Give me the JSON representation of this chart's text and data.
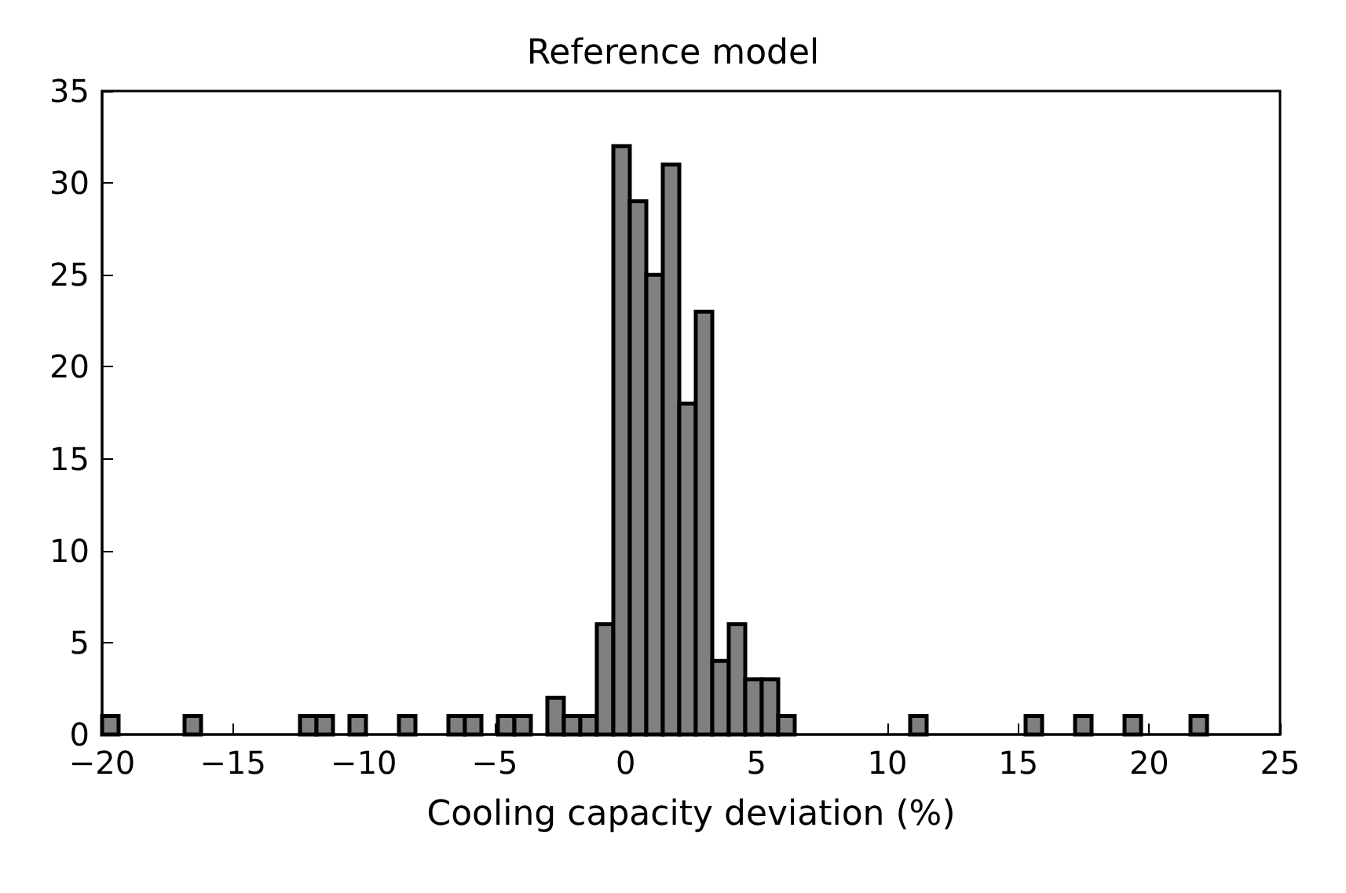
{
  "chart_data": {
    "type": "histogram",
    "title": "Reference model",
    "xlabel": "Cooling capacity deviation (%)",
    "color": "#808080",
    "bins": [
      -20,
      -19.37,
      -18.74,
      -18.11,
      -17.48,
      -16.85,
      -16.22,
      -15.59,
      -14.96,
      -14.33,
      -13.7,
      -13.07,
      -12.44,
      -11.81,
      -11.18,
      -10.55,
      -9.92,
      -9.29,
      -8.66,
      -8.03,
      -7.4,
      -6.77,
      -6.14,
      -5.51,
      -4.88,
      -4.25,
      -3.62,
      -2.99,
      -2.36,
      -1.73,
      -1.1,
      -0.47,
      0.16,
      0.79,
      1.42,
      2.05,
      2.68,
      3.31,
      3.94,
      4.57,
      5.2,
      5.83,
      6.46,
      7.09,
      7.72,
      8.35,
      8.98,
      9.61,
      10.24,
      10.87,
      11.5,
      12.13,
      12.76,
      13.39,
      14.02,
      14.65,
      15.28,
      15.91,
      16.54,
      17.17,
      17.8,
      18.43,
      19.06,
      19.69,
      20.32,
      20.95,
      21.58,
      22.21
    ],
    "values": [
      1,
      0,
      0,
      0,
      0,
      1,
      0,
      0,
      0,
      0,
      0,
      0,
      1,
      1,
      0,
      1,
      0,
      0,
      1,
      0,
      0,
      1,
      1,
      0,
      1,
      1,
      0,
      2,
      1,
      1,
      6,
      32,
      29,
      25,
      31,
      18,
      23,
      4,
      6,
      3,
      3,
      1,
      0,
      0,
      0,
      0,
      0,
      0,
      0,
      1,
      0,
      0,
      0,
      0,
      0,
      0,
      1,
      0,
      0,
      1,
      0,
      0,
      1,
      0,
      0,
      0,
      1
    ],
    "xlim": [
      -20,
      25
    ],
    "xticks": [
      -20,
      -15,
      -10,
      -5,
      0,
      5,
      10,
      15,
      20,
      25
    ],
    "ylim": [
      0,
      35
    ],
    "yticks": [
      0,
      5,
      10,
      15,
      20,
      25,
      30,
      35
    ],
    "grid": false
  }
}
